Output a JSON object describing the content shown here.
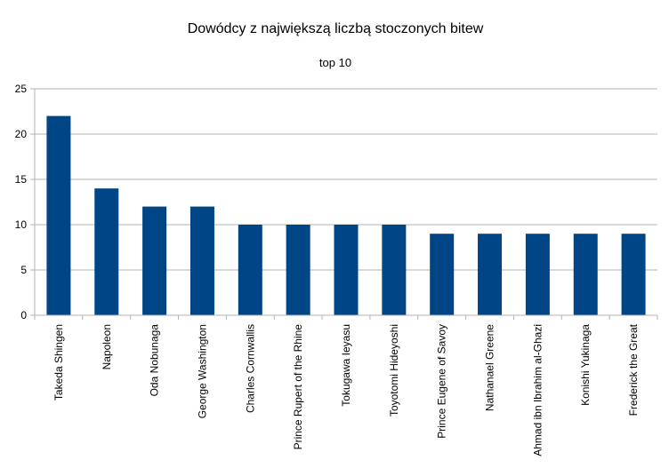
{
  "colors": {
    "bar": "#004586",
    "grid": "#b3b3b3",
    "background": "#ffffff"
  },
  "chart_data": {
    "type": "bar",
    "title": "Dowódcy z największą liczbą stoczonych bitew",
    "subtitle": "top 10",
    "xlabel": "",
    "ylabel": "",
    "ylim": [
      0,
      25
    ],
    "yticks": [
      0,
      5,
      10,
      15,
      20,
      25
    ],
    "grid": true,
    "legend": "none",
    "categories": [
      "Takeda Shingen",
      "Napoleon",
      "Oda Nobunaga",
      "George Washington",
      "Charles Cornwallis",
      "Prince Rupert of the Rhine",
      "Tokugawa Ieyasu",
      "Toyotomi Hideyoshi",
      "Prince Eugene of Savoy",
      "Nathanael Greene",
      "Ahmad ibn Ibrahim al-Ghazi",
      "Konishi Yukinaga",
      "Frederick the Great"
    ],
    "values": [
      22,
      14,
      12,
      12,
      10,
      10,
      10,
      10,
      9,
      9,
      9,
      9,
      9
    ]
  }
}
